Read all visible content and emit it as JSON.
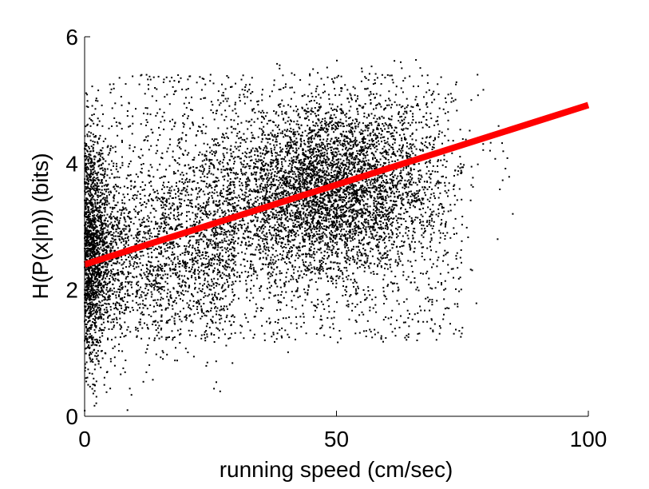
{
  "chart_data": {
    "type": "scatter",
    "title": "",
    "xlabel": "running speed (cm/sec)",
    "ylabel": "H(P(x|n)) (bits)",
    "xlim": [
      0,
      100
    ],
    "ylim": [
      0,
      6
    ],
    "x_ticks": [
      0,
      50,
      100
    ],
    "y_ticks": [
      0,
      2,
      4,
      6
    ],
    "x_tick_labels": [
      "0",
      "50",
      "100"
    ],
    "y_tick_labels": [
      "0",
      "2",
      "4",
      "6"
    ],
    "grid": false,
    "colors": {
      "points": "#000000",
      "fit_line": "#ff0000",
      "axes": "#000000"
    },
    "series": [
      {
        "kind": "points",
        "sample_points": [
          [
            0.5,
            2.8
          ],
          [
            0.8,
            1.5
          ],
          [
            1.2,
            3.9
          ],
          [
            1.5,
            2.2
          ],
          [
            2,
            0.4
          ],
          [
            2.5,
            4.6
          ],
          [
            3,
            1.2
          ],
          [
            4,
            3.1
          ],
          [
            5,
            2.0
          ],
          [
            6,
            0.8
          ],
          [
            8,
            2.6
          ],
          [
            10,
            3.5
          ],
          [
            12,
            5.1
          ],
          [
            15,
            2.1
          ],
          [
            18,
            1.6
          ],
          [
            20,
            4.2
          ],
          [
            22,
            2.5
          ],
          [
            25,
            5.4
          ],
          [
            28,
            1.9
          ],
          [
            30,
            3.0
          ],
          [
            33,
            2.7
          ],
          [
            35,
            4.8
          ],
          [
            38,
            3.4
          ],
          [
            40,
            2.2
          ],
          [
            42,
            4.1
          ],
          [
            45,
            3.6
          ],
          [
            47,
            1.4
          ],
          [
            50,
            3.3
          ],
          [
            52,
            4.4
          ],
          [
            55,
            5.5
          ],
          [
            57,
            3.8
          ],
          [
            60,
            2.4
          ],
          [
            62,
            4.0
          ],
          [
            65,
            3.1
          ],
          [
            68,
            4.6
          ],
          [
            70,
            3.7
          ],
          [
            72,
            2.9
          ],
          [
            75,
            1.4
          ],
          [
            78,
            5.4
          ],
          [
            82,
            2.8
          ],
          [
            85,
            3.2
          ],
          [
            66,
            1.2
          ]
        ]
      },
      {
        "kind": "fit",
        "x": [
          0,
          100
        ],
        "y": [
          2.4,
          4.92
        ]
      }
    ]
  }
}
